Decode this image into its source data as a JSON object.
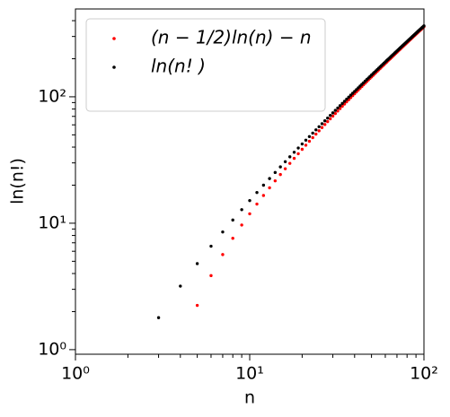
{
  "chart_data": {
    "type": "scatter",
    "xlabel": "n",
    "ylabel": "ln(n!)",
    "xscale": "log",
    "yscale": "log",
    "xlim": [
      1,
      100
    ],
    "ylim": [
      0.92,
      495
    ],
    "xticks": [
      {
        "value": 1,
        "label": "10⁰"
      },
      {
        "value": 10,
        "label": "10¹"
      },
      {
        "value": 100,
        "label": "10²"
      }
    ],
    "yticks": [
      {
        "value": 1,
        "label": "10⁰"
      },
      {
        "value": 10,
        "label": "10¹"
      },
      {
        "value": 100,
        "label": "10²"
      }
    ],
    "xminorticks": [
      2,
      3,
      4,
      5,
      6,
      7,
      8,
      9,
      20,
      30,
      40,
      50,
      60,
      70,
      80,
      90
    ],
    "yminorticks": [
      2,
      3,
      4,
      5,
      6,
      7,
      8,
      9,
      20,
      30,
      40,
      50,
      60,
      70,
      80,
      90,
      200,
      300,
      400
    ],
    "legend": "upper left",
    "series": [
      {
        "name": "(n − 1/2)ln(n) − n",
        "color": "red",
        "x": [
          5,
          6,
          7,
          8,
          9,
          10,
          11,
          12,
          13,
          14,
          15,
          16,
          17,
          18,
          19,
          20,
          21,
          22,
          23,
          24,
          25,
          26,
          27,
          28,
          29,
          30,
          31,
          32,
          33,
          34,
          35,
          36,
          37,
          38,
          39,
          40,
          41,
          42,
          43,
          44,
          45,
          46,
          47,
          48,
          49,
          50,
          51,
          52,
          53,
          54,
          55,
          56,
          57,
          58,
          59,
          60,
          61,
          62,
          63,
          64,
          65,
          66,
          67,
          68,
          69,
          70,
          71,
          72,
          73,
          74,
          75,
          76,
          77,
          78,
          79,
          80,
          81,
          82,
          83,
          84,
          85,
          86,
          87,
          88,
          89,
          90,
          91,
          92,
          93,
          94,
          95,
          96,
          97,
          98,
          99,
          100
        ],
        "values": [
          2.24,
          3.85,
          5.65,
          7.6,
          9.68,
          11.87,
          14.18,
          16.58,
          19.06,
          21.63,
          24.27,
          26.98,
          29.75,
          32.58,
          35.47,
          38.42,
          41.41,
          44.46,
          47.55,
          50.68,
          53.86,
          57.08,
          60.34,
          63.64,
          66.97,
          70.34,
          73.74,
          77.17,
          80.64,
          84.13,
          87.66,
          91.21,
          94.8,
          98.41,
          102.05,
          105.71,
          109.4,
          113.11,
          116.85,
          120.61,
          124.4,
          128.2,
          132.03,
          135.88,
          139.75,
          143.65,
          147.56,
          151.49,
          155.44,
          159.41,
          163.4,
          167.41,
          171.43,
          175.48,
          179.54,
          183.61,
          187.71,
          191.82,
          195.95,
          200.09,
          204.25,
          208.42,
          212.61,
          216.82,
          221.04,
          225.27,
          229.52,
          233.78,
          238.06,
          242.35,
          246.65,
          250.97,
          255.3,
          259.64,
          264.0,
          268.37,
          272.75,
          277.15,
          281.55,
          285.97,
          290.4,
          294.85,
          299.3,
          303.77,
          308.24,
          312.73,
          317.23,
          321.74,
          326.27,
          330.8,
          335.34,
          339.89,
          344.46,
          349.03,
          353.62,
          358.21
        ]
      },
      {
        "name": "ln(n! )",
        "color": "black",
        "x": [
          3,
          4,
          5,
          6,
          7,
          8,
          9,
          10,
          11,
          12,
          13,
          14,
          15,
          16,
          17,
          18,
          19,
          20,
          21,
          22,
          23,
          24,
          25,
          26,
          27,
          28,
          29,
          30,
          31,
          32,
          33,
          34,
          35,
          36,
          37,
          38,
          39,
          40,
          41,
          42,
          43,
          44,
          45,
          46,
          47,
          48,
          49,
          50,
          51,
          52,
          53,
          54,
          55,
          56,
          57,
          58,
          59,
          60,
          61,
          62,
          63,
          64,
          65,
          66,
          67,
          68,
          69,
          70,
          71,
          72,
          73,
          74,
          75,
          76,
          77,
          78,
          79,
          80,
          81,
          82,
          83,
          84,
          85,
          86,
          87,
          88,
          89,
          90,
          91,
          92,
          93,
          94,
          95,
          96,
          97,
          98,
          99,
          100
        ],
        "values": [
          1.79,
          3.18,
          4.79,
          6.58,
          8.53,
          10.6,
          12.8,
          15.1,
          17.5,
          19.99,
          22.55,
          25.19,
          27.9,
          30.67,
          33.51,
          36.4,
          39.34,
          42.34,
          45.38,
          48.47,
          51.61,
          54.78,
          58.0,
          61.26,
          64.56,
          67.89,
          71.26,
          74.66,
          78.09,
          81.56,
          85.05,
          88.58,
          92.14,
          95.72,
          99.33,
          102.97,
          106.63,
          110.32,
          114.03,
          117.77,
          121.53,
          125.32,
          129.12,
          132.95,
          136.8,
          140.67,
          144.57,
          148.48,
          152.41,
          156.36,
          160.33,
          164.32,
          168.33,
          172.35,
          176.4,
          180.46,
          184.53,
          188.63,
          192.74,
          196.87,
          201.01,
          205.17,
          209.34,
          213.53,
          217.74,
          221.96,
          226.19,
          230.44,
          234.7,
          238.98,
          243.27,
          247.57,
          251.89,
          256.22,
          260.56,
          264.92,
          269.29,
          273.67,
          278.07,
          282.47,
          286.89,
          291.32,
          295.77,
          300.22,
          304.69,
          309.16,
          313.65,
          318.15,
          322.66,
          327.19,
          331.72,
          336.26,
          340.81,
          345.38,
          349.95,
          354.54,
          359.13,
          363.74
        ]
      }
    ]
  }
}
